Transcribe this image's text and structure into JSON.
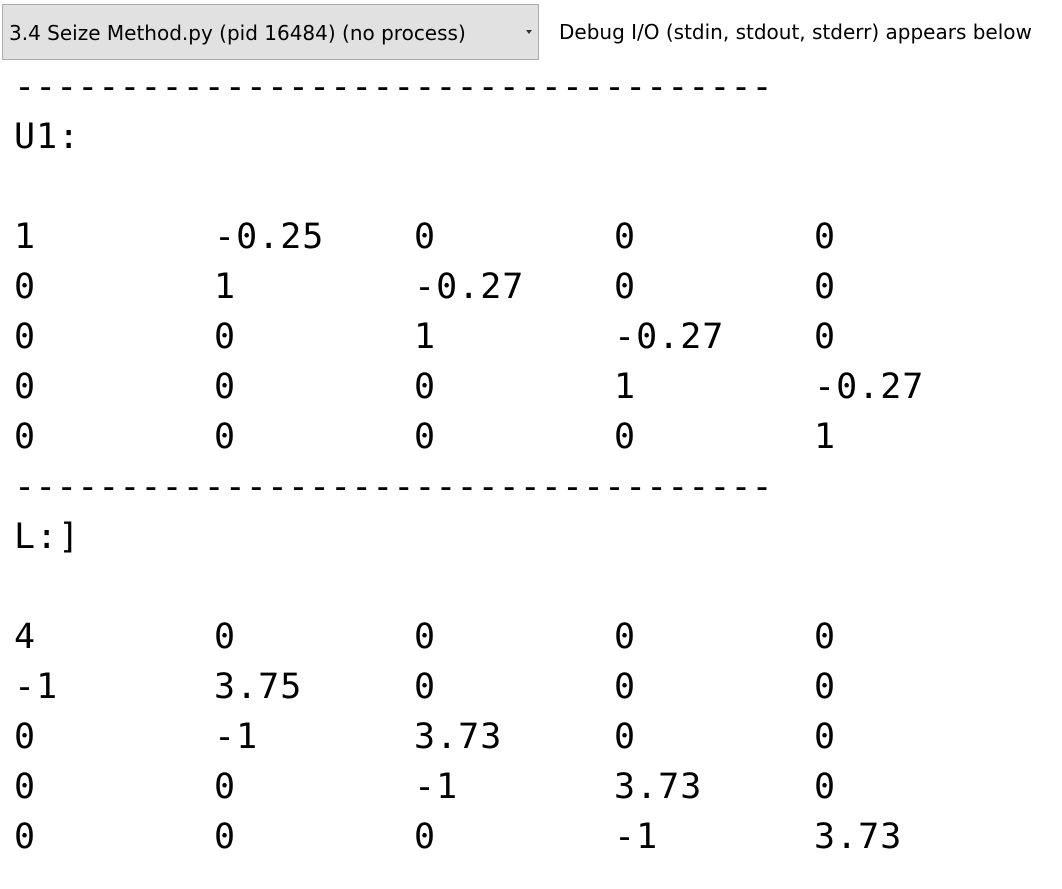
{
  "toolbar": {
    "process_select_value": "3.4 Seize Method.py (pid 16484) (no process)",
    "io_note": "Debug I/O (stdin, stdout, stderr) appears below"
  },
  "console": {
    "divider": "------------------------------------",
    "u1_label": "U1:",
    "u1_rows": [
      [
        "1",
        "-0.25",
        "0",
        "0",
        "0"
      ],
      [
        "0",
        "1",
        "-0.27",
        "0",
        "0"
      ],
      [
        "0",
        "0",
        "1",
        "-0.27",
        "0"
      ],
      [
        "0",
        "0",
        "0",
        "1",
        "-0.27"
      ],
      [
        "0",
        "0",
        "0",
        "0",
        "1"
      ]
    ],
    "l_label": "L:]",
    "l_rows": [
      [
        "4",
        "0",
        "0",
        "0",
        "0"
      ],
      [
        "-1",
        "3.75",
        "0",
        "0",
        "0"
      ],
      [
        "0",
        "-1",
        "3.73",
        "0",
        "0"
      ],
      [
        "0",
        "0",
        "-1",
        "3.73",
        "0"
      ],
      [
        "0",
        "0",
        "0",
        "-1",
        "3.73"
      ]
    ]
  }
}
